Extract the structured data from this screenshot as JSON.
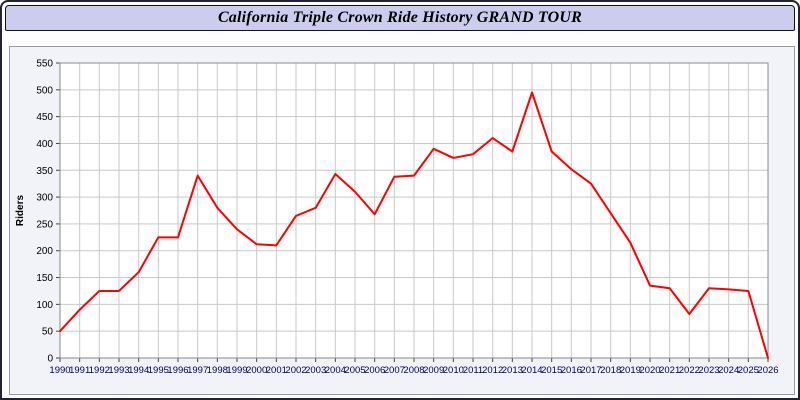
{
  "window": {
    "title": "California Triple Crown Ride History GRAND TOUR"
  },
  "colors": {
    "title_bar_bg": "#ccccee",
    "panel_bg": "#f2f2f9",
    "plot_bg": "#ffffff",
    "grid": "#c9c9c9",
    "plot_border": "#8a8a8a",
    "axis_text": "#000000",
    "x_label_color": "#000066",
    "line": "#ff0000"
  },
  "chart_data": {
    "type": "line",
    "title": "California Triple Crown Ride History GRAND TOUR",
    "xlabel": "",
    "ylabel": "Riders",
    "ylim": [
      0,
      550
    ],
    "ytick_step": 50,
    "grid": true,
    "legend": false,
    "line_color": "#ff0000",
    "categories": [
      1990,
      1991,
      1992,
      1993,
      1994,
      1995,
      1996,
      1997,
      1998,
      1999,
      2000,
      2001,
      2002,
      2003,
      2004,
      2005,
      2006,
      2007,
      2008,
      2009,
      2010,
      2011,
      2012,
      2013,
      2014,
      2015,
      2016,
      2017,
      2018,
      2019,
      2020,
      2021,
      2022,
      2023,
      2024,
      2025,
      2026
    ],
    "values": [
      50,
      90,
      125,
      125,
      160,
      225,
      225,
      340,
      280,
      240,
      212,
      210,
      265,
      280,
      343,
      310,
      268,
      338,
      340,
      390,
      373,
      380,
      410,
      385,
      495,
      385,
      352,
      325,
      270,
      215,
      135,
      130,
      82,
      130,
      128,
      125,
      0
    ]
  }
}
